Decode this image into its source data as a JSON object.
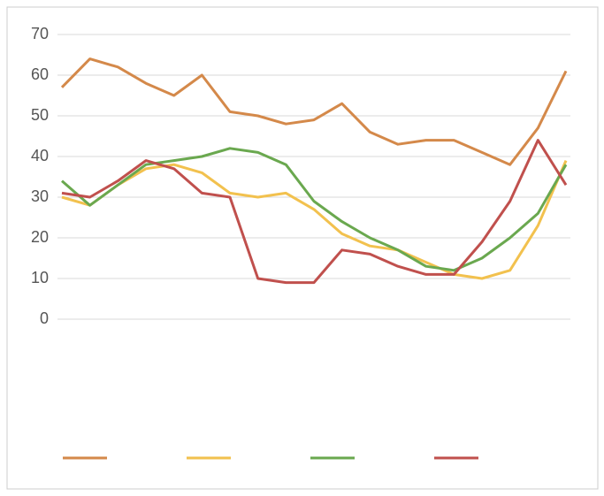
{
  "chart_data": {
    "type": "line",
    "categories": [
      null,
      null,
      null,
      null,
      null,
      null,
      null,
      null,
      null,
      null,
      null,
      null,
      null,
      null,
      null,
      null,
      null,
      null,
      null
    ],
    "series": [
      {
        "color": "#d4894a",
        "values": [
          57,
          64,
          62,
          58,
          55,
          60,
          51,
          50,
          48,
          49,
          53,
          46,
          43,
          44,
          44,
          41,
          38,
          47,
          61
        ]
      },
      {
        "color": "#f2c14e",
        "values": [
          30,
          28,
          33,
          37,
          38,
          36,
          31,
          30,
          31,
          27,
          21,
          18,
          17,
          14,
          11,
          10,
          12,
          23,
          39
        ]
      },
      {
        "color": "#6aa84f",
        "values": [
          34,
          28,
          33,
          38,
          39,
          40,
          42,
          41,
          38,
          29,
          24,
          20,
          17,
          13,
          12,
          15,
          20,
          26,
          38
        ]
      },
      {
        "color": "#c0504d",
        "values": [
          31,
          30,
          34,
          39,
          37,
          31,
          30,
          10,
          9,
          9,
          17,
          16,
          13,
          11,
          11,
          19,
          29,
          44,
          33
        ]
      }
    ],
    "ylim": [
      0,
      70
    ],
    "yticks": [
      0,
      10,
      20,
      30,
      40,
      50,
      60,
      70
    ],
    "grid": true
  }
}
